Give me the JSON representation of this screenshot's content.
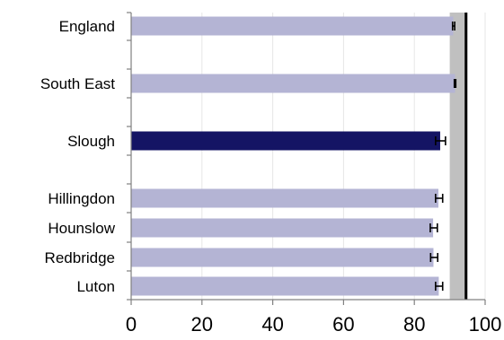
{
  "chart_data": {
    "type": "bar",
    "orientation": "horizontal",
    "title": "",
    "xlabel": "",
    "ylabel": "",
    "xlim": [
      0,
      100
    ],
    "x_ticks": [
      0,
      20,
      40,
      60,
      80,
      100
    ],
    "grid": true,
    "categories": [
      "England",
      "South East",
      "Slough",
      "Hillingdon",
      "Hounslow",
      "Redbridge",
      "Luton"
    ],
    "values": [
      91,
      91.5,
      87.3,
      86.8,
      85.3,
      85.4,
      86.9
    ],
    "error_low": [
      90.8,
      91.3,
      86.0,
      86.0,
      84.5,
      84.6,
      86.0
    ],
    "error_high": [
      91.4,
      91.7,
      88.8,
      88.0,
      86.5,
      86.6,
      88.0
    ],
    "highlight_category": "Slough",
    "target_band": [
      90,
      95
    ],
    "target_line": 94.6,
    "colors": {
      "bar": "#b4b4d4",
      "highlight_bar": "#141464",
      "band": "#c0c0c0",
      "target_line": "#000000"
    }
  }
}
